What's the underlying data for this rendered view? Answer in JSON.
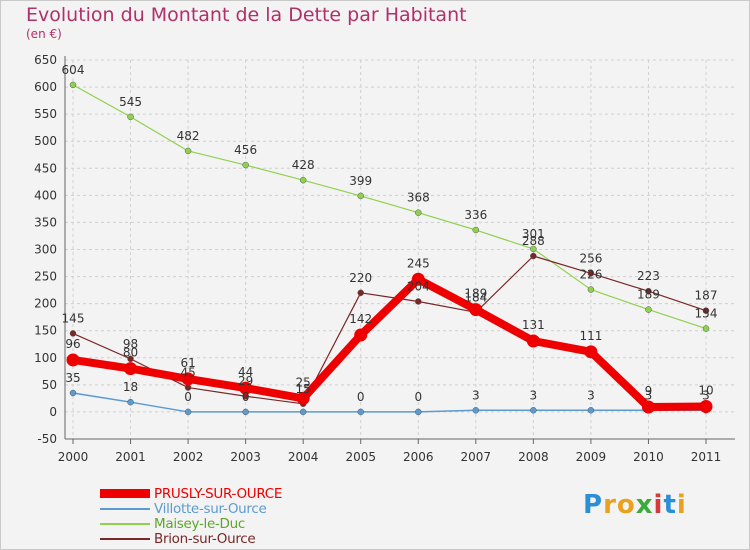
{
  "header": {
    "title": "Evolution du Montant de la Dette par Habitant",
    "subtitle": "(en €)"
  },
  "logo": {
    "letters": [
      "P",
      "r",
      "o",
      "x",
      "i",
      "t",
      "i"
    ],
    "colors": [
      "#2b8fd6",
      "#e8a21e",
      "#e8a21e",
      "#3aaa3a",
      "#d83a3a",
      "#2b8fd6",
      "#e8a21e"
    ]
  },
  "chart_data": {
    "type": "line",
    "title": "Evolution du Montant de la Dette par Habitant",
    "subtitle": "(en €)",
    "x": [
      "2000",
      "2001",
      "2002",
      "2003",
      "2004",
      "2005",
      "2006",
      "2007",
      "2008",
      "2009",
      "2010",
      "2011"
    ],
    "ylim": [
      -50,
      650
    ],
    "yticks": [
      -50,
      0,
      50,
      100,
      150,
      200,
      250,
      300,
      350,
      400,
      450,
      500,
      550,
      600,
      650
    ],
    "grid": true,
    "legend_position": "bottom-left",
    "series": [
      {
        "name": "PRUSLY-SUR-OURCE",
        "color": "#ee0000",
        "values": [
          96,
          80,
          61,
          44,
          25,
          142,
          245,
          189,
          131,
          111,
          9,
          10
        ],
        "labels": [
          "96",
          "80",
          "61",
          "44",
          "25",
          "142",
          "245",
          "189",
          "131",
          "111",
          "9",
          "10"
        ]
      },
      {
        "name": "Villotte-sur-Ource",
        "color": "#5b9bd0",
        "values": [
          35,
          18,
          0,
          0,
          0,
          0,
          0,
          3,
          3,
          3,
          3,
          3
        ],
        "labels": [
          "35",
          "18",
          "0",
          "0",
          "",
          "0",
          "0",
          "3",
          "3",
          "3",
          "3",
          "3"
        ]
      },
      {
        "name": "Maisey-le-Duc",
        "color": "#8fd14f",
        "values": [
          604,
          545,
          482,
          456,
          428,
          399,
          368,
          336,
          301,
          226,
          189,
          154
        ],
        "labels": [
          "604",
          "545",
          "482",
          "456",
          "428",
          "399",
          "368",
          "336",
          "301",
          "226",
          "189",
          "154"
        ]
      },
      {
        "name": "Brion-sur-Ource",
        "color": "#7a2727",
        "values": [
          145,
          98,
          45,
          29,
          15,
          220,
          204,
          184,
          288,
          256,
          223,
          187
        ],
        "labels": [
          "145",
          "98",
          "45",
          "29",
          "15",
          "220",
          "204",
          "184",
          "288",
          "256",
          "223",
          "187"
        ]
      }
    ]
  }
}
